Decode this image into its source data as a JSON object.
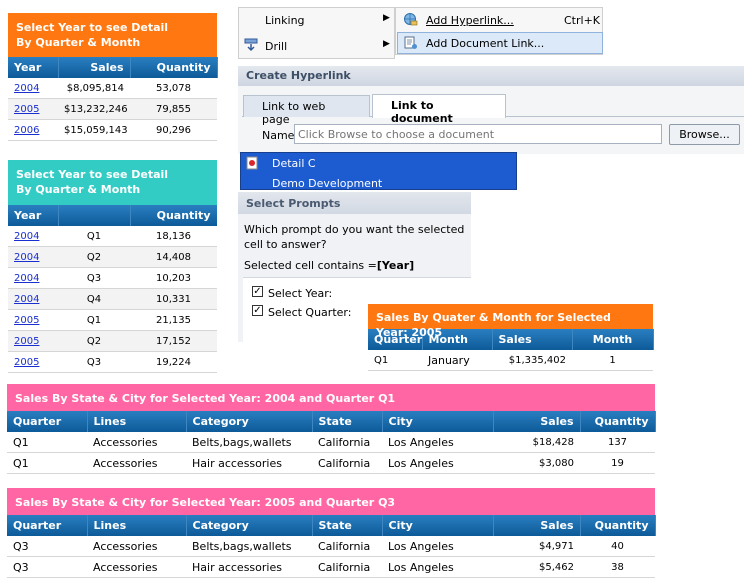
{
  "panel1": {
    "title": "Select Year to see Detail By Quarter & Month",
    "headers": [
      "Year",
      "Sales",
      "Quantity"
    ],
    "rows": [
      {
        "year": "2004",
        "sales": "$8,095,814",
        "quantity": "53,078"
      },
      {
        "year": "2005",
        "sales": "$13,232,246",
        "quantity": "79,855"
      },
      {
        "year": "2006",
        "sales": "$15,059,143",
        "quantity": "90,296"
      }
    ],
    "color": "#ff7711"
  },
  "panel2": {
    "title": "Select Year to see Detail By Quarter & Month",
    "headers": [
      "Year",
      "",
      "Quantity"
    ],
    "rows": [
      {
        "year": "2004",
        "quarter": "Q1",
        "quantity": "18,136"
      },
      {
        "year": "2004",
        "quarter": "Q2",
        "quantity": "14,408"
      },
      {
        "year": "2004",
        "quarter": "Q3",
        "quantity": "10,203"
      },
      {
        "year": "2004",
        "quarter": "Q4",
        "quantity": "10,331"
      },
      {
        "year": "2005",
        "quarter": "Q1",
        "quantity": "21,135"
      },
      {
        "year": "2005",
        "quarter": "Q2",
        "quantity": "17,152"
      },
      {
        "year": "2005",
        "quarter": "Q3",
        "quantity": "19,224"
      }
    ],
    "color": "#33ccc4"
  },
  "context_menu": {
    "items": [
      {
        "label": "Linking",
        "icon": "none"
      },
      {
        "label": "Drill",
        "icon": "drill-icon"
      }
    ]
  },
  "submenu": {
    "items": [
      {
        "label": "Add Hyperlink...",
        "shortcut": "Ctrl+K",
        "icon": "globe-link-icon"
      },
      {
        "label": "Add Document Link...",
        "shortcut": "",
        "icon": "document-link-icon"
      }
    ]
  },
  "hyperlink_dialog": {
    "title": "Create Hyperlink",
    "tabs": [
      "Link to web page",
      "Link to document"
    ],
    "name_label": "Name",
    "name_placeholder": "Click Browse to choose a document",
    "browse_label": "Browse..."
  },
  "doc_list": {
    "items": [
      "Detail C",
      "Demo Development"
    ]
  },
  "prompts_dialog": {
    "title": "Select Prompts",
    "question": "Which prompt do you want the selected cell to answer?",
    "contains_prefix": "Selected cell contains =",
    "contains_value": "[Year]",
    "options": [
      {
        "label": "Select Year:",
        "checked": true
      },
      {
        "label": "Select Quarter:",
        "checked": true
      }
    ]
  },
  "quarter_month_panel": {
    "title": "Sales By Quater & Month for Selected Year: 2005",
    "headers": [
      "Quarter",
      "Month",
      "Sales",
      "Month"
    ],
    "rows": [
      {
        "quarter": "Q1",
        "month": "January",
        "sales": "$1,335,402",
        "month_num": "1"
      }
    ],
    "color": "#ff7711"
  },
  "state_city_panel1": {
    "title": "Sales By State & City for Selected Year: 2004 and Quarter Q1",
    "headers": [
      "Quarter",
      "Lines",
      "Category",
      "State",
      "City",
      "Sales",
      "Quantity"
    ],
    "rows": [
      {
        "quarter": "Q1",
        "lines": "Accessories",
        "category": "Belts,bags,wallets",
        "state": "California",
        "city": "Los Angeles",
        "sales": "$18,428",
        "quantity": "137"
      },
      {
        "quarter": "Q1",
        "lines": "Accessories",
        "category": "Hair accessories",
        "state": "California",
        "city": "Los Angeles",
        "sales": "$3,080",
        "quantity": "19"
      }
    ],
    "color": "#ff66a3"
  },
  "state_city_panel2": {
    "title": "Sales By State & City for Selected Year: 2005 and Quarter Q3",
    "headers": [
      "Quarter",
      "Lines",
      "Category",
      "State",
      "City",
      "Sales",
      "Quantity"
    ],
    "rows": [
      {
        "quarter": "Q3",
        "lines": "Accessories",
        "category": "Belts,bags,wallets",
        "state": "California",
        "city": "Los Angeles",
        "sales": "$4,971",
        "quantity": "40"
      },
      {
        "quarter": "Q3",
        "lines": "Accessories",
        "category": "Hair accessories",
        "state": "California",
        "city": "Los Angeles",
        "sales": "$5,462",
        "quantity": "38"
      }
    ],
    "color": "#ff66a3"
  }
}
